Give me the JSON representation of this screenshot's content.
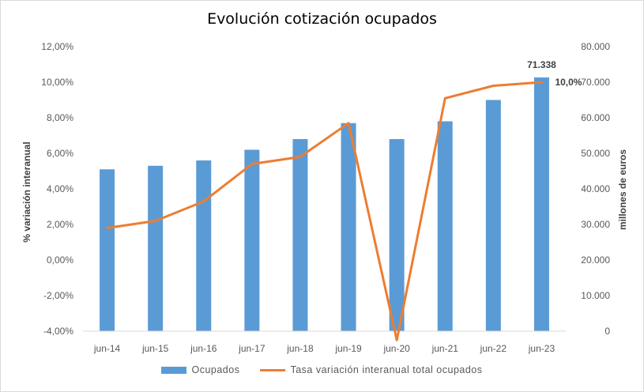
{
  "chart_data": {
    "type": "bar",
    "title": "Evolución cotización ocupados",
    "categories": [
      "jun-14",
      "jun-15",
      "jun-16",
      "jun-17",
      "jun-18",
      "jun-19",
      "jun-20",
      "jun-21",
      "jun-22",
      "jun-23"
    ],
    "series": [
      {
        "name": "Ocupados",
        "type": "bar",
        "axis": "right",
        "color": "#5B9BD5",
        "values": [
          45500,
          46500,
          48000,
          51000,
          54000,
          58500,
          54000,
          59000,
          65000,
          71338
        ]
      },
      {
        "name": "Tasa variación interanual total ocupados",
        "type": "line",
        "axis": "left",
        "color": "#ED7D31",
        "values": [
          1.8,
          2.2,
          3.3,
          5.4,
          5.8,
          7.7,
          -4.5,
          9.1,
          9.8,
          10.0
        ]
      }
    ],
    "y_left": {
      "label": "% variación interanual",
      "range": [
        -4,
        12
      ],
      "ticks": [
        "-4,00%",
        "-2,00%",
        "0,00%",
        "2,00%",
        "4,00%",
        "6,00%",
        "8,00%",
        "10,00%",
        "12,00%"
      ]
    },
    "y_right": {
      "label": "millones de euros",
      "range": [
        0,
        80000
      ],
      "ticks": [
        "0",
        "10.000",
        "20.000",
        "30.000",
        "40.000",
        "50.000",
        "60.000",
        "70.000",
        "80.000"
      ]
    },
    "data_labels": {
      "last_bar": "71.338",
      "last_line": "10,0%"
    },
    "grid": false,
    "legend_position": "bottom"
  }
}
